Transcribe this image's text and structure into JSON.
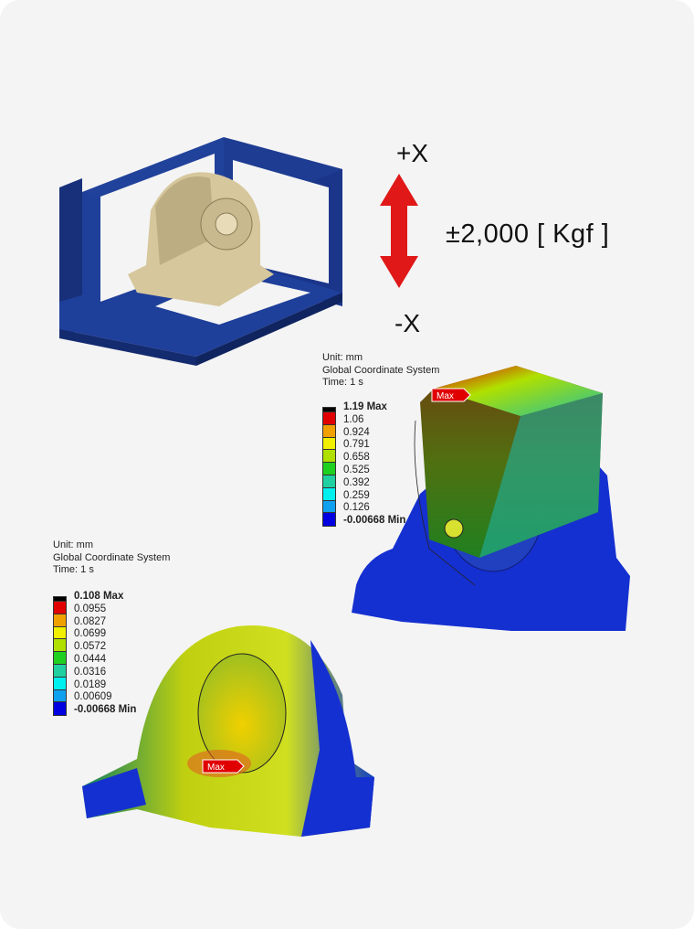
{
  "load": {
    "plus_axis": "+X",
    "minus_axis": "-X",
    "force": "±2,000 [ Kgf ]",
    "arrow_color": "#e01818"
  },
  "result_1": {
    "unit": "Unit: mm",
    "coordinate_system": "Global Coordinate System",
    "time": "Time: 1 s",
    "max_label": "1.19 Max",
    "values": [
      "1.06",
      "0.924",
      "0.791",
      "0.658",
      "0.525",
      "0.392",
      "0.259",
      "0.126"
    ],
    "min_label": "-0.00668 Min",
    "max_tag": "Max"
  },
  "result_2": {
    "unit": "Unit: mm",
    "coordinate_system": "Global Coordinate System",
    "time": "Time: 1 s",
    "max_label": "0.108 Max",
    "values": [
      "0.0955",
      "0.0827",
      "0.0699",
      "0.0572",
      "0.0444",
      "0.0316",
      "0.0189",
      "0.00609"
    ],
    "min_label": "-0.00668 Min",
    "max_tag": "Max"
  },
  "legend_colors": [
    "#000000",
    "#e00000",
    "#f0a000",
    "#f0f000",
    "#b0e000",
    "#20d020",
    "#20d0a0",
    "#00f0f0",
    "#10a0f0",
    "#0000e0"
  ],
  "fixture_color": "#1e3a8a",
  "part_color": "#d8c9a0"
}
